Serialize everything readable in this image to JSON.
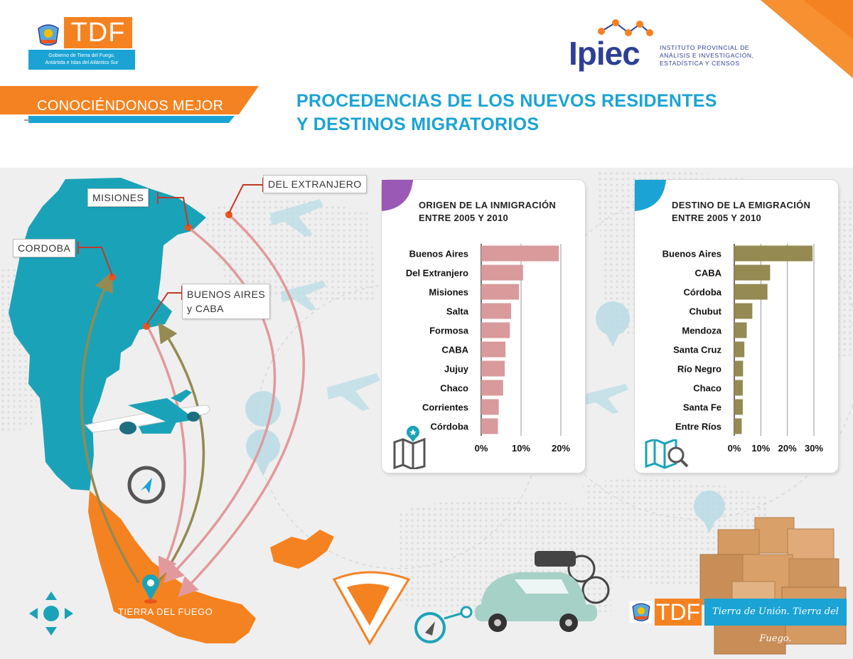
{
  "header": {
    "tdf_brand": "TDF",
    "tdf_subtitle_line1": "Gobierno de Tierra del Fuego,",
    "tdf_subtitle_line2": "Antártida e Islas del Atlántico Sur",
    "ipiec_word": "Ipiec",
    "ipiec_line1": "INSTITUTO PROVINCIAL DE",
    "ipiec_line2": "ANÁLISIS E INVESTIGACIÓN,",
    "ipiec_line3": "ESTADÍSTICA Y CENSOS",
    "section_label": "CONOCIÉNDONOS MEJOR",
    "title_line1": "PROCEDENCIAS DE LOS NUEVOS RESIDENTES",
    "title_line2": "Y DESTINOS MIGRATORIOS"
  },
  "map": {
    "callouts": {
      "misiones": "MISIONES",
      "extranjero": "DEL EXTRANJERO",
      "cordoba": "CORDOBA",
      "bsas_line1": "BUENOS AIRES",
      "bsas_line2": "y CABA"
    },
    "destination": "TIERRA DEL FUEGO",
    "colors": {
      "continent": "#1aa3b8",
      "tdf": "#f58220",
      "arrow_pink": "#e2999b",
      "arrow_olive": "#948a52",
      "pin": "#e8541e"
    }
  },
  "footer": {
    "tdf_brand": "TDF",
    "tagline": "Tierra de Unión. Tierra del Fuego."
  },
  "chart_data": [
    {
      "type": "bar",
      "orientation": "horizontal",
      "title_line1": "ORIGEN DE LA INMIGRACIÓN",
      "title_line2": "ENTRE 2005 Y 2010",
      "categories": [
        "Buenos Aires",
        "Del Extranjero",
        "Misiones",
        "Salta",
        "Formosa",
        "CABA",
        "Jujuy",
        "Chaco",
        "Corrientes",
        "Córdoba"
      ],
      "values": [
        19.5,
        10.5,
        9.5,
        7.5,
        7.2,
        6.1,
        5.9,
        5.5,
        4.4,
        4.2
      ],
      "xlim": [
        0,
        20
      ],
      "ticks": [
        "0%",
        "10%",
        "20%"
      ],
      "tick_values": [
        0,
        10,
        20
      ],
      "color": "#d99a9b",
      "accent": "#9b59b6"
    },
    {
      "type": "bar",
      "orientation": "horizontal",
      "title_line1": "DESTINO DE LA EMIGRACIÓN",
      "title_line2": "ENTRE 2005 Y 2010",
      "categories": [
        "Buenos Aires",
        "CABA",
        "Córdoba",
        "Chubut",
        "Mendoza",
        "Santa Cruz",
        "Río Negro",
        "Chaco",
        "Santa Fe",
        "Entre Ríos"
      ],
      "values": [
        29.5,
        13.5,
        12.5,
        6.8,
        4.7,
        3.8,
        3.3,
        3.2,
        3.2,
        2.8
      ],
      "xlim": [
        0,
        30
      ],
      "ticks": [
        "0%",
        "10%",
        "20%",
        "30%"
      ],
      "tick_values": [
        0,
        10,
        20,
        30
      ],
      "color": "#948a52",
      "accent": "#1aa3d4"
    }
  ]
}
